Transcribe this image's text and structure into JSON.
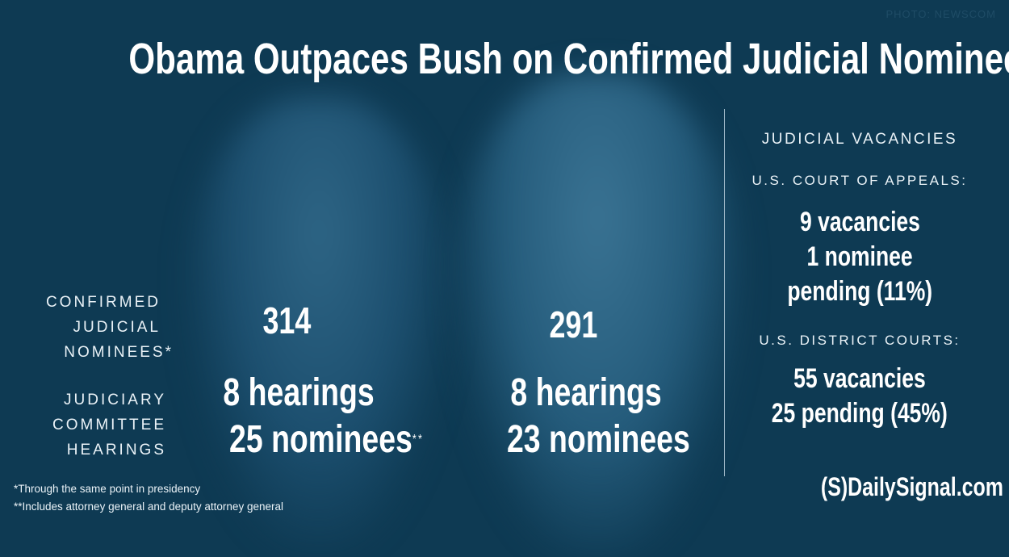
{
  "credit": "PHOTO: NEWSCOM",
  "title": "Obama Outpaces Bush on Confirmed Judicial Nominees",
  "rows": {
    "confirmed_label": [
      "CONFIRMED",
      "JUDICIAL",
      "NOMINEES*"
    ],
    "hearings_label": [
      "JUDICIARY",
      "COMMITTEE",
      "HEARINGS"
    ]
  },
  "obama": {
    "confirmed": "314",
    "hearings": "8 hearings",
    "nominees": "25 nominees",
    "nominees_mark": "**"
  },
  "bush": {
    "confirmed": "291",
    "hearings": "8 hearings",
    "nominees": "23 nominees"
  },
  "vacancies": {
    "heading": "JUDICIAL VACANCIES",
    "appeals_label": "U.S. COURT OF APPEALS:",
    "appeals_lines": [
      "9 vacancies",
      "1 nominee",
      "pending (11%)"
    ],
    "district_label": "U.S. DISTRICT COURTS:",
    "district_lines": [
      "55 vacancies",
      "25 pending (45%)"
    ]
  },
  "footnotes": [
    "*Through the same point in presidency",
    "**Includes attorney general and deputy attorney general"
  ],
  "logo": "(S)DailySignal.com",
  "colors": {
    "background": "#0e3a53",
    "text": "#ffffff"
  }
}
